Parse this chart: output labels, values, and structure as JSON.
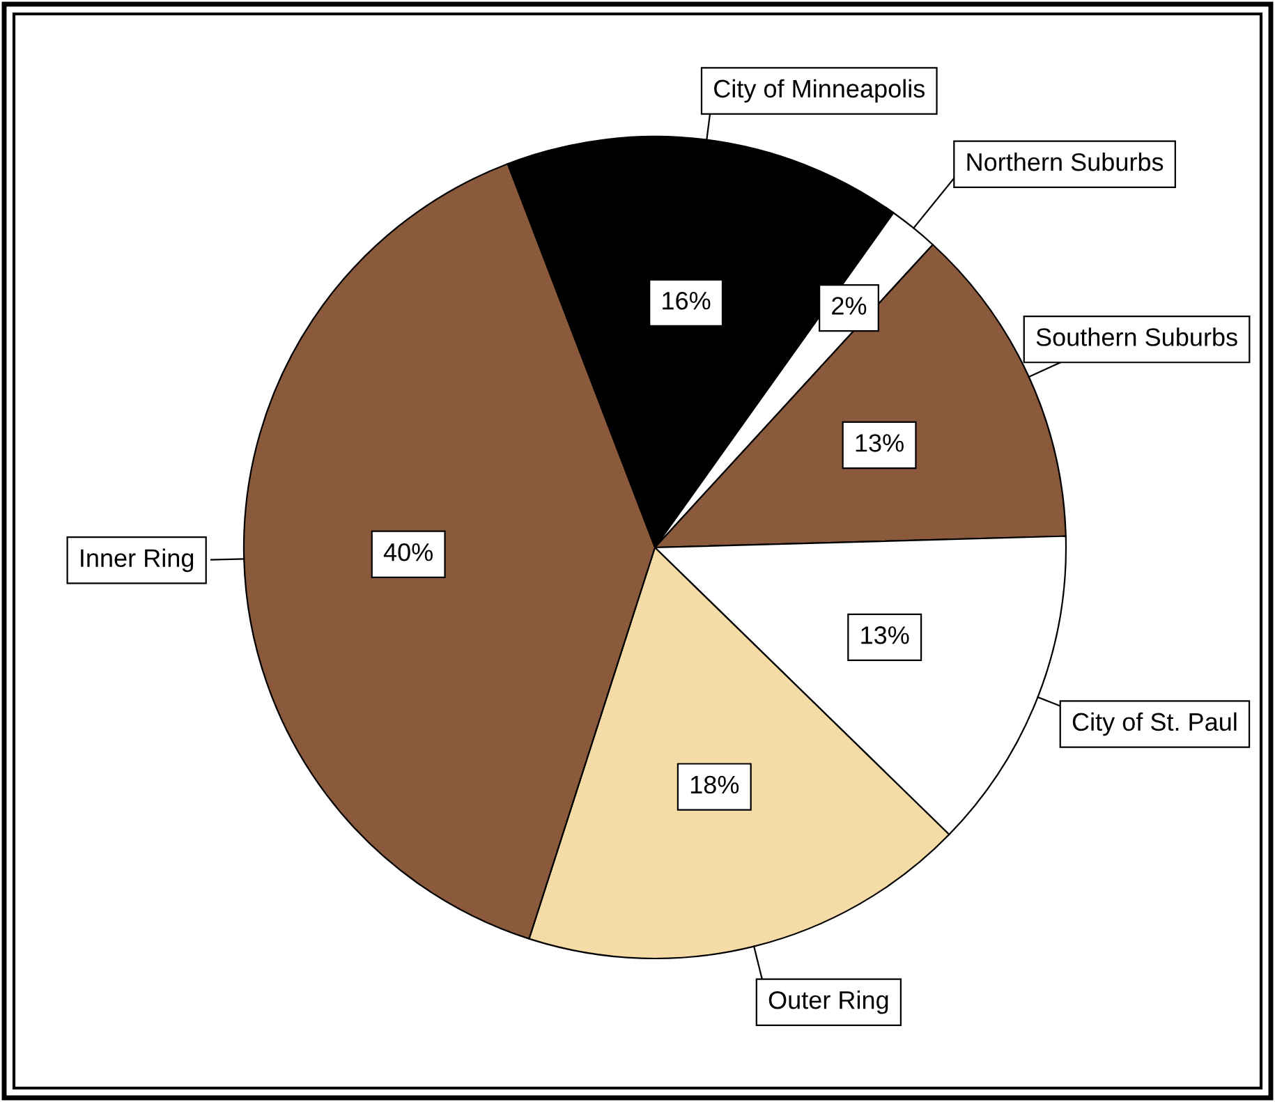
{
  "chart_data": {
    "type": "pie",
    "categories": [
      "City of Minneapolis",
      "Northern Suburbs",
      "Southern Suburbs",
      "City of St. Paul",
      "Outer Ring",
      "Inner Ring"
    ],
    "values": [
      16,
      2,
      13,
      13,
      18,
      40
    ],
    "value_labels": [
      "16%",
      "2%",
      "13%",
      "13%",
      "18%",
      "40%"
    ],
    "colors": [
      "#000000",
      "#ffffff",
      "#8b5a3c",
      "#ffffff",
      "#f5dca7",
      "#8b5a3c"
    ],
    "legend": false
  }
}
